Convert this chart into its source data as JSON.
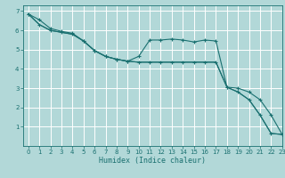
{
  "title": "",
  "xlabel": "Humidex (Indice chaleur)",
  "bg_color": "#b2d8d8",
  "grid_color": "#ffffff",
  "line_color": "#1a7070",
  "xlim": [
    -0.5,
    23
  ],
  "ylim": [
    0,
    7.3
  ],
  "xticks": [
    0,
    1,
    2,
    3,
    4,
    5,
    6,
    7,
    8,
    9,
    10,
    11,
    12,
    13,
    14,
    15,
    16,
    17,
    18,
    19,
    20,
    21,
    22,
    23
  ],
  "yticks": [
    1,
    2,
    3,
    4,
    5,
    6,
    7
  ],
  "line1_x": [
    0,
    1,
    2,
    3,
    4,
    5,
    6,
    7,
    8,
    9,
    10,
    11,
    12,
    13,
    14,
    15,
    16,
    17,
    18,
    19,
    20,
    21,
    22,
    23
  ],
  "line1_y": [
    6.85,
    6.55,
    6.1,
    5.95,
    5.85,
    5.45,
    4.95,
    4.65,
    4.5,
    4.4,
    4.35,
    4.35,
    4.35,
    4.35,
    4.35,
    4.35,
    4.35,
    4.35,
    3.05,
    2.8,
    2.4,
    1.6,
    0.65,
    0.6
  ],
  "line2_x": [
    0,
    1,
    2,
    3,
    4,
    5,
    6,
    7,
    8,
    9,
    10,
    11,
    12,
    13,
    14,
    15,
    16,
    17,
    18,
    19,
    20,
    21,
    22,
    23
  ],
  "line2_y": [
    6.85,
    6.3,
    6.0,
    5.9,
    5.8,
    5.45,
    4.95,
    4.65,
    4.5,
    4.4,
    4.65,
    5.5,
    5.5,
    5.55,
    5.5,
    5.4,
    5.5,
    5.45,
    3.05,
    3.0,
    2.8,
    2.4,
    1.6,
    0.6
  ],
  "line3_x": [
    0,
    1,
    2,
    3,
    4,
    5,
    6,
    7,
    8,
    9,
    10,
    11,
    12,
    13,
    14,
    15,
    16,
    17,
    18,
    19,
    20,
    21,
    22,
    23
  ],
  "line3_y": [
    6.85,
    6.3,
    6.0,
    5.9,
    5.8,
    5.45,
    4.95,
    4.65,
    4.5,
    4.4,
    4.35,
    4.35,
    4.35,
    4.35,
    4.35,
    4.35,
    4.35,
    4.35,
    3.05,
    2.8,
    2.4,
    1.6,
    0.65,
    0.6
  ],
  "marker_color": "#1a7070",
  "tick_fontsize": 5,
  "xlabel_fontsize": 6
}
